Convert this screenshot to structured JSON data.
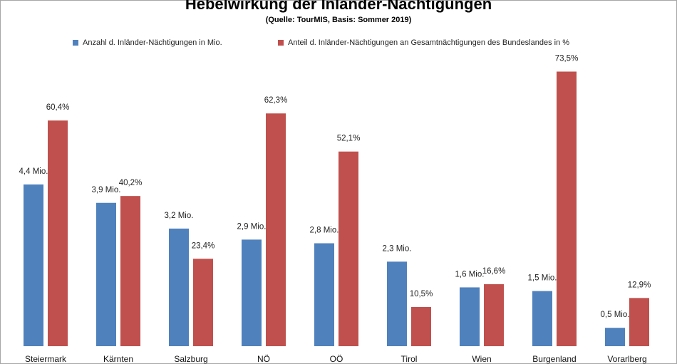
{
  "chart_data": {
    "type": "bar",
    "title": "Hebelwirkung der Inländer-Nächtigungen",
    "subtitle": "(Quelle: TourMIS,  Basis: Sommer 2019)",
    "categories": [
      "Steiermark",
      "Kärnten",
      "Salzburg",
      "NÖ",
      "OÖ",
      "Tirol",
      "Wien",
      "Burgenland",
      "Vorarlberg"
    ],
    "series": [
      {
        "name": "Anzahl d. Inländer-Nächtigungen in Mio.",
        "color": "#4f81bd",
        "values": [
          4.4,
          3.9,
          3.2,
          2.9,
          2.8,
          2.3,
          1.6,
          1.5,
          0.5
        ],
        "labels": [
          "4,4 Mio.",
          "3,9 Mio.",
          "3,2 Mio.",
          "2,9 Mio.",
          "2,8 Mio.",
          "2,3 Mio.",
          "1,6 Mio.",
          "1,5 Mio.",
          "0,5 Mio."
        ]
      },
      {
        "name": "Anteil d. Inländer-Nächtigungen an Gesamtnächtigungen des Bundeslandes in %",
        "color": "#c0504d",
        "values": [
          60.4,
          40.2,
          23.4,
          62.3,
          52.1,
          10.5,
          16.6,
          73.5,
          12.9
        ],
        "labels": [
          "60,4%",
          "40,2%",
          "23,4%",
          "62,3%",
          "52,1%",
          "10,5%",
          "16,6%",
          "73,5%",
          "12,9%"
        ]
      }
    ],
    "legend_position": "top",
    "grid": false
  }
}
